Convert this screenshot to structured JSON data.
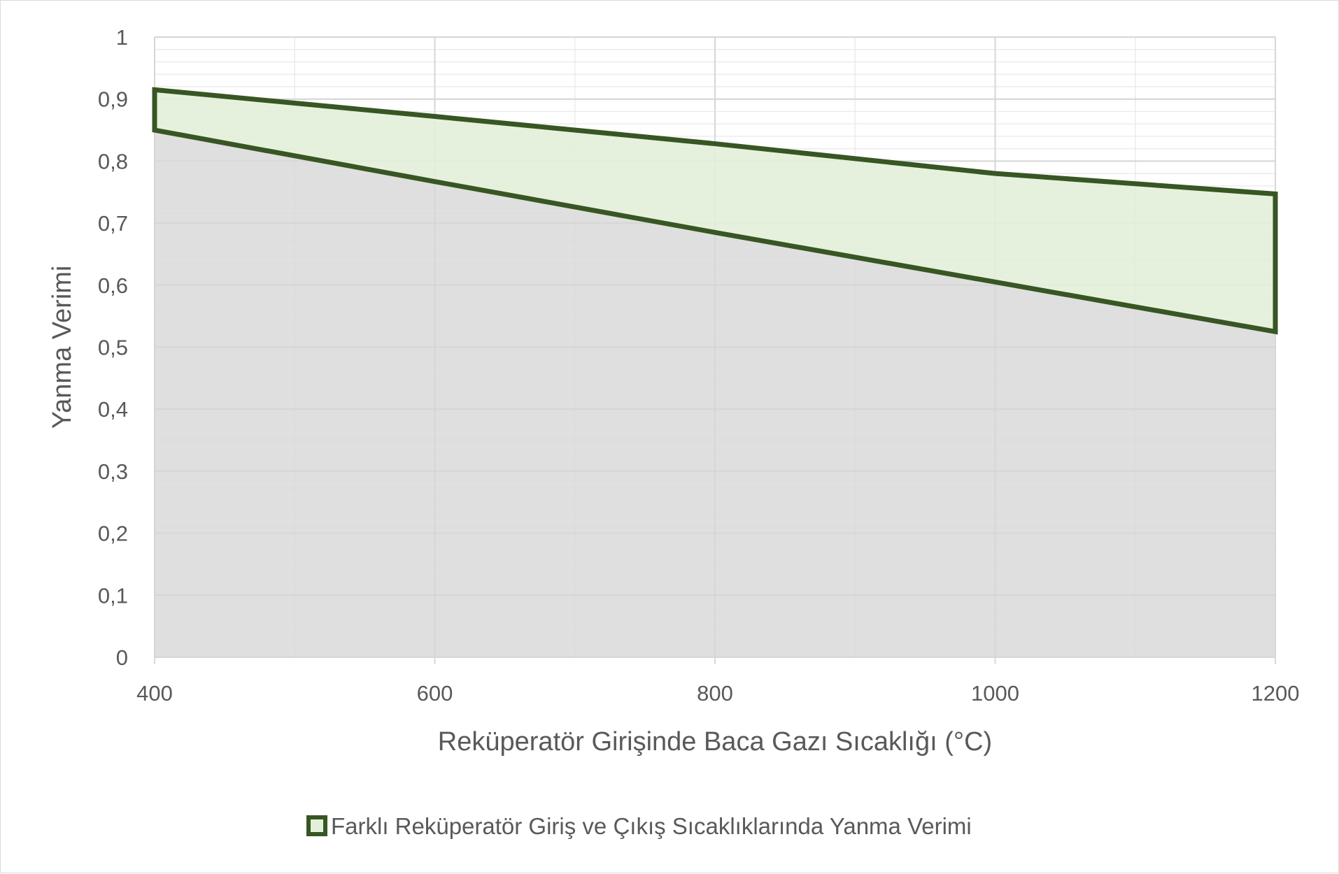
{
  "chart_data": {
    "type": "area",
    "title": "",
    "xlabel": "Reküperatör Girişinde Baca Gazı Sıcaklığı (°C)",
    "ylabel": "Yanma Verimi",
    "xlim": [
      400,
      1200
    ],
    "ylim": [
      0,
      1
    ],
    "x_ticks": [
      "400",
      "600",
      "800",
      "1000",
      "1200"
    ],
    "x_tick_values": [
      400,
      600,
      800,
      1000,
      1200
    ],
    "y_ticks": [
      "0",
      "0,1",
      "0,2",
      "0,3",
      "0,4",
      "0,5",
      "0,6",
      "0,7",
      "0,8",
      "0,9",
      "1"
    ],
    "y_tick_values": [
      0,
      0.1,
      0.2,
      0.3,
      0.4,
      0.5,
      0.6,
      0.7,
      0.8,
      0.9,
      1.0
    ],
    "grid": true,
    "minor_grid": true,
    "legend_position": "bottom",
    "series": [
      {
        "name": "",
        "role": "base",
        "x": [
          400,
          600,
          800,
          1000,
          1200
        ],
        "values": [
          0.85,
          0.767,
          0.685,
          0.605,
          0.525
        ],
        "fill": "#d9d9d9"
      },
      {
        "name": "Farklı Reküperatör Giriş ve Çıkış Sıcaklıklarında Yanma Verimi",
        "role": "band",
        "x": [
          400,
          600,
          800,
          1000,
          1200
        ],
        "upper": [
          0.915,
          0.872,
          0.828,
          0.78,
          0.747
        ],
        "lower": [
          0.85,
          0.767,
          0.685,
          0.605,
          0.525
        ],
        "fill": "#e2f0d9",
        "stroke": "#375623"
      }
    ]
  },
  "legend": {
    "label": "Farklı Reküperatör Giriş ve Çıkış Sıcaklıklarında Yanma Verimi"
  }
}
